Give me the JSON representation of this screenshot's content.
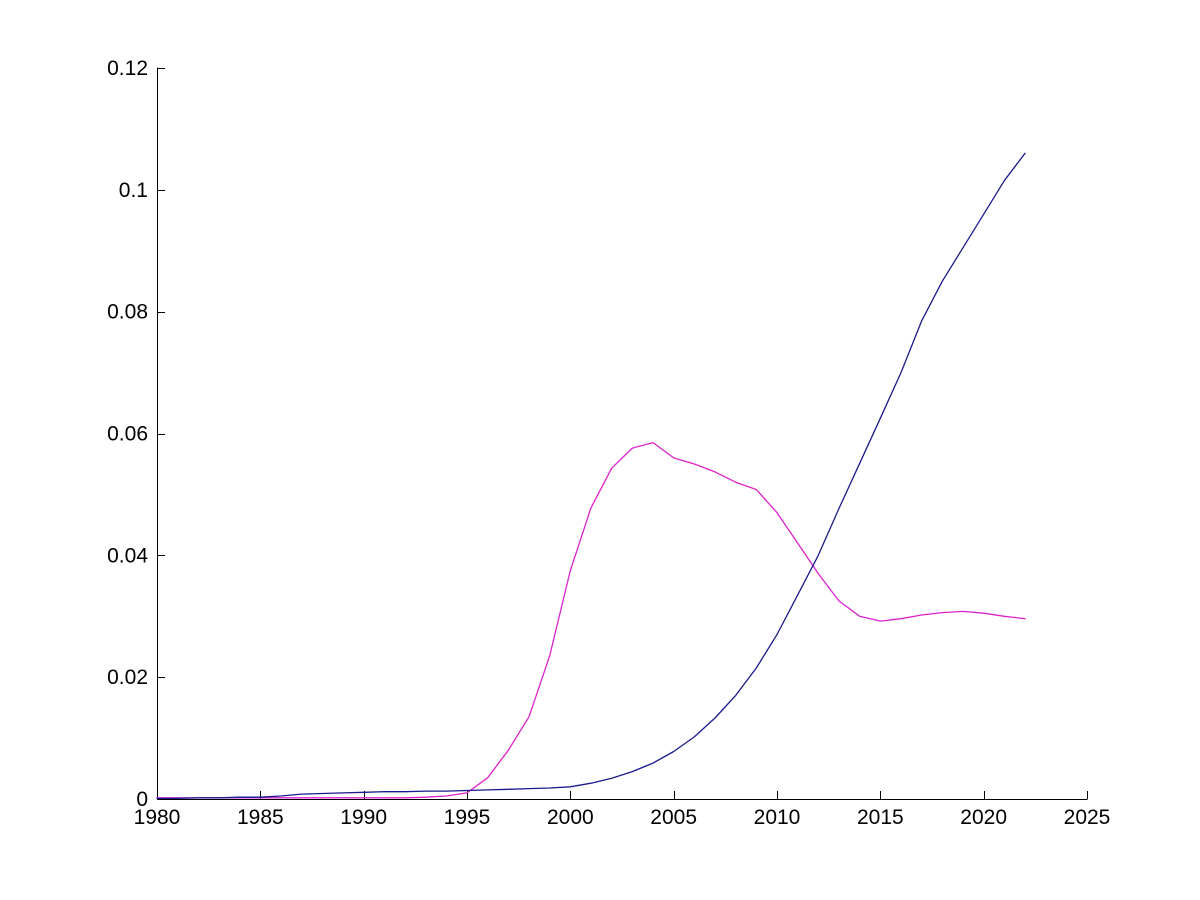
{
  "figure": {
    "background": "#ffffff",
    "axis_color": "#000000"
  },
  "chart_data": {
    "type": "line",
    "title": "",
    "xlabel": "",
    "ylabel": "",
    "grid": false,
    "legend": "none",
    "xlim": [
      1980,
      2025
    ],
    "ylim": [
      0,
      0.12
    ],
    "x_ticks": [
      1980,
      1985,
      1990,
      1995,
      2000,
      2005,
      2010,
      2015,
      2020,
      2025
    ],
    "x_tick_labels": [
      "1980",
      "1985",
      "1990",
      "1995",
      "2000",
      "2005",
      "2010",
      "2015",
      "2020",
      "2025"
    ],
    "y_ticks": [
      0,
      0.02,
      0.04,
      0.06,
      0.08,
      0.1,
      0.12
    ],
    "y_tick_labels": [
      "0",
      "0.02",
      "0.04",
      "0.06",
      "0.08",
      "0.1",
      "0.12"
    ],
    "x": [
      1980,
      1981,
      1982,
      1983,
      1984,
      1985,
      1986,
      1987,
      1988,
      1989,
      1990,
      1991,
      1992,
      1993,
      1994,
      1995,
      1996,
      1997,
      1998,
      1999,
      2000,
      2001,
      2002,
      2003,
      2004,
      2005,
      2006,
      2007,
      2008,
      2009,
      2010,
      2011,
      2012,
      2013,
      2014,
      2015,
      2016,
      2017,
      2018,
      2019,
      2020,
      2021,
      2022
    ],
    "series": [
      {
        "name": "magenta-line",
        "color": "#DD22CC",
        "values": [
          0.0002,
          0.0002,
          0.0002,
          0.0002,
          0.0002,
          0.0002,
          0.0002,
          0.0002,
          0.0002,
          0.0002,
          0.0002,
          0.0002,
          0.0002,
          0.0003,
          0.0005,
          0.001,
          0.0035,
          0.008,
          0.0135,
          0.0235,
          0.0375,
          0.0478,
          0.0543,
          0.0576,
          0.0585,
          0.056,
          0.055,
          0.0537,
          0.052,
          0.0508,
          0.047,
          0.042,
          0.037,
          0.0325,
          0.03,
          0.0292,
          0.0296,
          0.0302,
          0.0306,
          0.0308,
          0.0305,
          0.03,
          0.0296
        ]
      },
      {
        "name": "navy-line",
        "color": "#1A1A8C",
        "values": [
          0.0001,
          0.0001,
          0.0002,
          0.0002,
          0.0003,
          0.0003,
          0.0005,
          0.0008,
          0.0009,
          0.001,
          0.0011,
          0.0012,
          0.0012,
          0.0013,
          0.0013,
          0.0014,
          0.0015,
          0.0016,
          0.0017,
          0.0018,
          0.002,
          0.0026,
          0.0034,
          0.0045,
          0.0059,
          0.0078,
          0.0102,
          0.0133,
          0.017,
          0.0215,
          0.027,
          0.0335,
          0.04,
          0.0477,
          0.0551,
          0.0625,
          0.07,
          0.0785,
          0.085,
          0.0905,
          0.096,
          0.1015,
          0.106
        ]
      }
    ]
  }
}
